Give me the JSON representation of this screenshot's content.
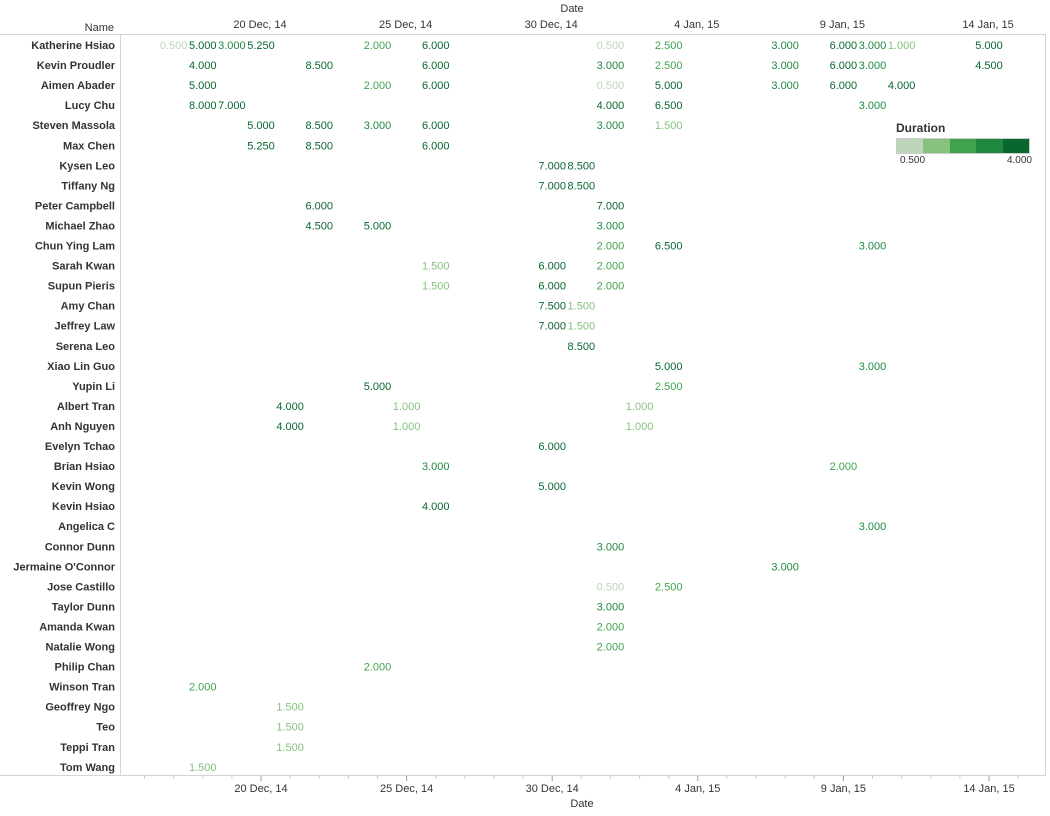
{
  "chart_data": {
    "type": "table",
    "row_header": "Name",
    "x_axis_title_top": "Date",
    "x_axis_title_bottom": "Date",
    "x_ticks": [
      {
        "date": "2014-12-20",
        "label": "20 Dec, 14"
      },
      {
        "date": "2014-12-25",
        "label": "25 Dec, 14"
      },
      {
        "date": "2014-12-30",
        "label": "30 Dec, 14"
      },
      {
        "date": "2015-01-04",
        "label": "4 Jan, 15"
      },
      {
        "date": "2015-01-09",
        "label": "9 Jan, 15"
      },
      {
        "date": "2015-01-14",
        "label": "14 Jan, 15"
      }
    ],
    "x_range": [
      "2014-12-16",
      "2015-01-16"
    ],
    "legend": {
      "title": "Duration",
      "min_label": "0.500",
      "max_label": "4.000",
      "min": 0.5,
      "max": 4.0,
      "colors": [
        "#bdd5b8",
        "#86c17e",
        "#3fa34d",
        "#1e8840",
        "#09662e"
      ],
      "placement": "right"
    },
    "rows": [
      {
        "name": "Katherine Hsiao",
        "cells": [
          [
            "2014-12-17",
            "0.500"
          ],
          [
            "2014-12-18",
            "5.000"
          ],
          [
            "2014-12-19",
            "3.000"
          ],
          [
            "2014-12-20",
            "5.250"
          ],
          [
            "2014-12-24",
            "2.000"
          ],
          [
            "2014-12-26",
            "6.000"
          ],
          [
            "2015-01-01",
            "0.500"
          ],
          [
            "2015-01-03",
            "2.500"
          ],
          [
            "2015-01-07",
            "3.000"
          ],
          [
            "2015-01-09",
            "6.000"
          ],
          [
            "2015-01-10",
            "3.000"
          ],
          [
            "2015-01-11",
            "1.000"
          ],
          [
            "2015-01-14",
            "5.000"
          ]
        ]
      },
      {
        "name": "Kevin Proudler",
        "cells": [
          [
            "2014-12-18",
            "4.000"
          ],
          [
            "2014-12-22",
            "8.500"
          ],
          [
            "2014-12-26",
            "6.000"
          ],
          [
            "2015-01-01",
            "3.000"
          ],
          [
            "2015-01-03",
            "2.500"
          ],
          [
            "2015-01-07",
            "3.000"
          ],
          [
            "2015-01-09",
            "6.000"
          ],
          [
            "2015-01-10",
            "3.000"
          ],
          [
            "2015-01-14",
            "4.500"
          ]
        ]
      },
      {
        "name": "Aimen Abader",
        "cells": [
          [
            "2014-12-18",
            "5.000"
          ],
          [
            "2014-12-24",
            "2.000"
          ],
          [
            "2014-12-26",
            "6.000"
          ],
          [
            "2015-01-01",
            "0.500"
          ],
          [
            "2015-01-03",
            "5.000"
          ],
          [
            "2015-01-07",
            "3.000"
          ],
          [
            "2015-01-09",
            "6.000"
          ],
          [
            "2015-01-11",
            "4.000"
          ]
        ]
      },
      {
        "name": "Lucy Chu",
        "cells": [
          [
            "2014-12-18",
            "8.000"
          ],
          [
            "2014-12-19",
            "7.000"
          ],
          [
            "2015-01-01",
            "4.000"
          ],
          [
            "2015-01-03",
            "6.500"
          ],
          [
            "2015-01-10",
            "3.000"
          ]
        ]
      },
      {
        "name": "Steven Massola",
        "cells": [
          [
            "2014-12-20",
            "5.000"
          ],
          [
            "2014-12-22",
            "8.500"
          ],
          [
            "2014-12-24",
            "3.000"
          ],
          [
            "2014-12-26",
            "6.000"
          ],
          [
            "2015-01-01",
            "3.000"
          ],
          [
            "2015-01-03",
            "1.500"
          ]
        ]
      },
      {
        "name": "Max Chen",
        "cells": [
          [
            "2014-12-20",
            "5.250"
          ],
          [
            "2014-12-22",
            "8.500"
          ],
          [
            "2014-12-26",
            "6.000"
          ]
        ]
      },
      {
        "name": "Kysen Leo",
        "cells": [
          [
            "2014-12-30",
            "7.000"
          ],
          [
            "2014-12-31",
            "8.500"
          ]
        ]
      },
      {
        "name": "Tiffany Ng",
        "cells": [
          [
            "2014-12-30",
            "7.000"
          ],
          [
            "2014-12-31",
            "8.500"
          ]
        ]
      },
      {
        "name": "Peter Campbell",
        "cells": [
          [
            "2014-12-22",
            "6.000"
          ],
          [
            "2015-01-01",
            "7.000"
          ]
        ]
      },
      {
        "name": "Michael Zhao",
        "cells": [
          [
            "2014-12-22",
            "4.500"
          ],
          [
            "2014-12-24",
            "5.000"
          ],
          [
            "2015-01-01",
            "3.000"
          ]
        ]
      },
      {
        "name": "Chun Ying Lam",
        "cells": [
          [
            "2015-01-01",
            "2.000"
          ],
          [
            "2015-01-03",
            "6.500"
          ],
          [
            "2015-01-10",
            "3.000"
          ]
        ]
      },
      {
        "name": "Sarah Kwan",
        "cells": [
          [
            "2014-12-26",
            "1.500"
          ],
          [
            "2014-12-30",
            "6.000"
          ],
          [
            "2015-01-01",
            "2.000"
          ]
        ]
      },
      {
        "name": "Supun Pieris",
        "cells": [
          [
            "2014-12-26",
            "1.500"
          ],
          [
            "2014-12-30",
            "6.000"
          ],
          [
            "2015-01-01",
            "2.000"
          ]
        ]
      },
      {
        "name": "Amy Chan",
        "cells": [
          [
            "2014-12-30",
            "7.500"
          ],
          [
            "2014-12-31",
            "1.500"
          ]
        ]
      },
      {
        "name": "Jeffrey Law",
        "cells": [
          [
            "2014-12-30",
            "7.000"
          ],
          [
            "2014-12-31",
            "1.500"
          ]
        ]
      },
      {
        "name": "Serena Leo",
        "cells": [
          [
            "2014-12-31",
            "8.500"
          ]
        ]
      },
      {
        "name": "Xiao Lin Guo",
        "cells": [
          [
            "2015-01-03",
            "5.000"
          ],
          [
            "2015-01-10",
            "3.000"
          ]
        ]
      },
      {
        "name": "Yupin Li",
        "cells": [
          [
            "2014-12-24",
            "5.000"
          ],
          [
            "2015-01-03",
            "2.500"
          ]
        ]
      },
      {
        "name": "Albert Tran",
        "cells": [
          [
            "2014-12-21",
            "4.000"
          ],
          [
            "2014-12-25",
            "1.000"
          ],
          [
            "2015-01-02",
            "1.000"
          ]
        ]
      },
      {
        "name": "Anh Nguyen",
        "cells": [
          [
            "2014-12-21",
            "4.000"
          ],
          [
            "2014-12-25",
            "1.000"
          ],
          [
            "2015-01-02",
            "1.000"
          ]
        ]
      },
      {
        "name": "Evelyn Tchao",
        "cells": [
          [
            "2014-12-30",
            "6.000"
          ]
        ]
      },
      {
        "name": "Brian Hsiao",
        "cells": [
          [
            "2014-12-26",
            "3.000"
          ],
          [
            "2015-01-09",
            "2.000"
          ]
        ]
      },
      {
        "name": "Kevin Wong",
        "cells": [
          [
            "2014-12-30",
            "5.000"
          ]
        ]
      },
      {
        "name": "Kevin Hsiao",
        "cells": [
          [
            "2014-12-26",
            "4.000"
          ]
        ]
      },
      {
        "name": "Angelica C",
        "cells": [
          [
            "2015-01-10",
            "3.000"
          ]
        ]
      },
      {
        "name": "Connor Dunn",
        "cells": [
          [
            "2015-01-01",
            "3.000"
          ]
        ]
      },
      {
        "name": "Jermaine O'Connor",
        "cells": [
          [
            "2015-01-07",
            "3.000"
          ]
        ]
      },
      {
        "name": "Jose Castillo",
        "cells": [
          [
            "2015-01-01",
            "0.500"
          ],
          [
            "2015-01-03",
            "2.500"
          ]
        ]
      },
      {
        "name": "Taylor Dunn",
        "cells": [
          [
            "2015-01-01",
            "3.000"
          ]
        ]
      },
      {
        "name": "Amanda Kwan",
        "cells": [
          [
            "2015-01-01",
            "2.000"
          ]
        ]
      },
      {
        "name": "Natalie Wong",
        "cells": [
          [
            "2015-01-01",
            "2.000"
          ]
        ]
      },
      {
        "name": "Philip Chan",
        "cells": [
          [
            "2014-12-24",
            "2.000"
          ]
        ]
      },
      {
        "name": "Winson Tran",
        "cells": [
          [
            "2014-12-18",
            "2.000"
          ]
        ]
      },
      {
        "name": "Geoffrey Ngo",
        "cells": [
          [
            "2014-12-21",
            "1.500"
          ]
        ]
      },
      {
        "name": "Teo",
        "cells": [
          [
            "2014-12-21",
            "1.500"
          ]
        ]
      },
      {
        "name": "Teppi Tran",
        "cells": [
          [
            "2014-12-21",
            "1.500"
          ]
        ]
      },
      {
        "name": "Tom Wang",
        "cells": [
          [
            "2014-12-18",
            "1.500"
          ]
        ]
      }
    ]
  }
}
